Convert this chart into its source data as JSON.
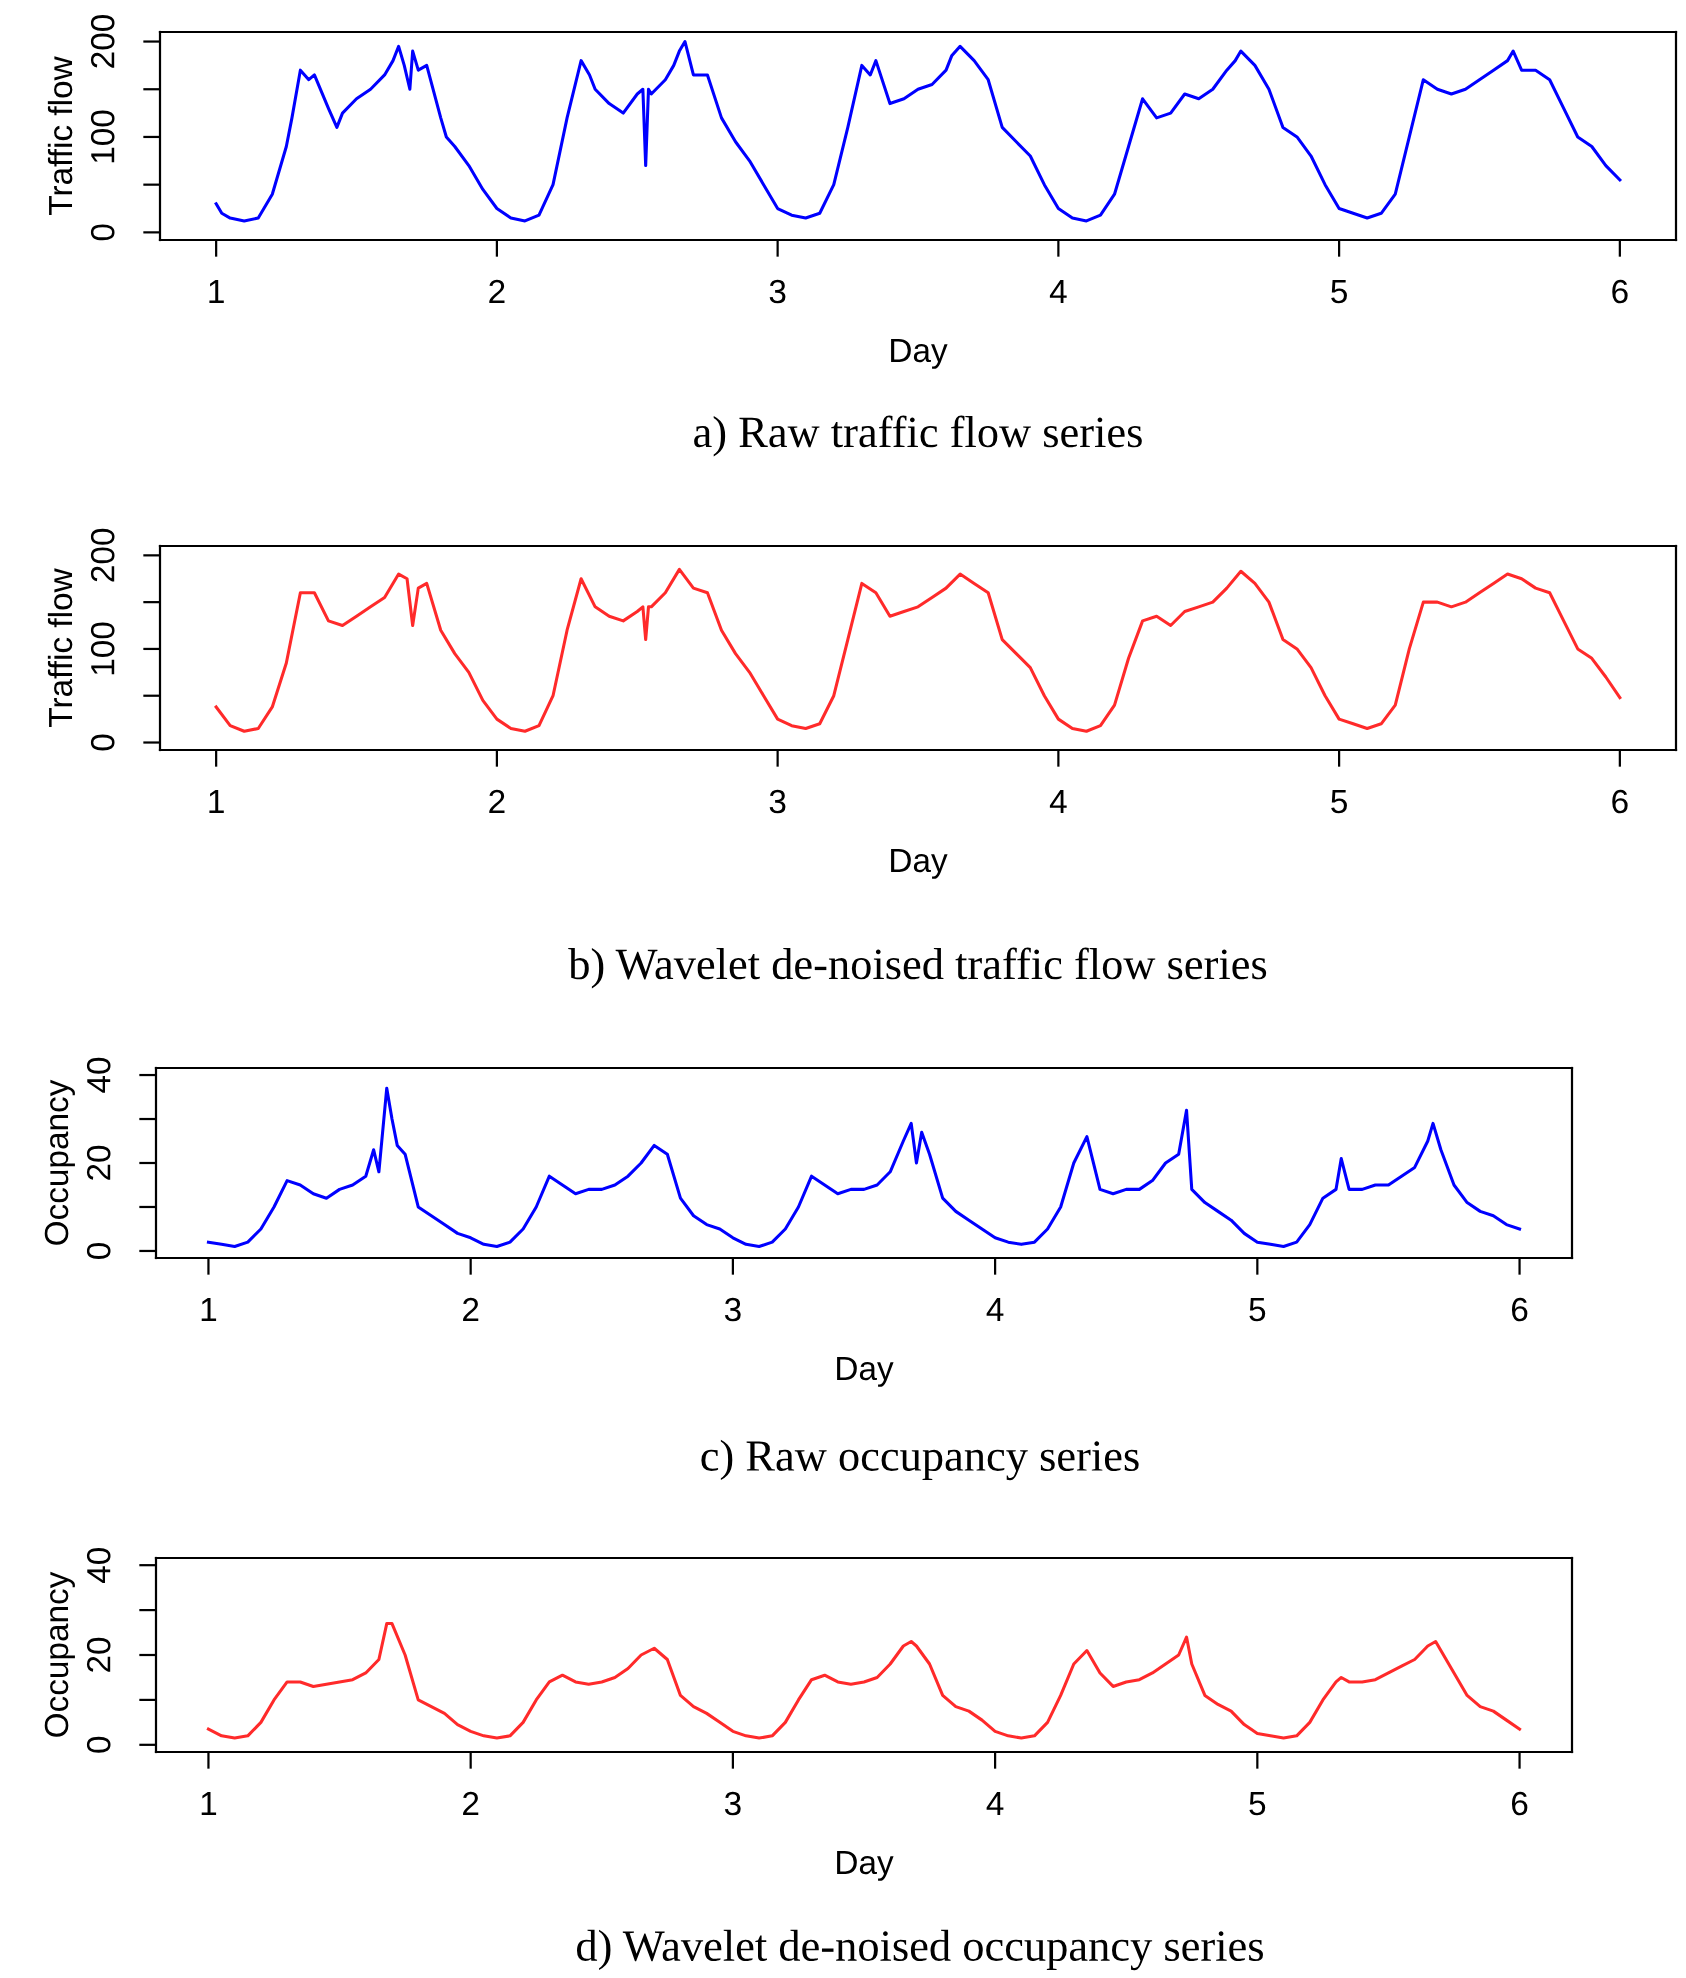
{
  "chart_data": [
    {
      "type": "line",
      "xlabel": "Day",
      "ylabel": "Traffic flow",
      "annotations": [
        "a) Raw traffic flow series"
      ],
      "xlim": [
        0.8,
        6.2
      ],
      "xticks": [
        1,
        2,
        3,
        4,
        5,
        6
      ],
      "ylim": [
        -8,
        210
      ],
      "yticks": [
        0,
        {
          "value": 50,
          "label": null
        },
        100,
        {
          "value": 150,
          "label": null
        },
        200
      ],
      "grid": false,
      "series": [
        {
          "color": "#0000ff",
          "x": [
            1.0,
            1.02,
            1.05,
            1.1,
            1.15,
            1.2,
            1.25,
            1.27,
            1.3,
            1.33,
            1.35,
            1.4,
            1.43,
            1.45,
            1.5,
            1.55,
            1.6,
            1.63,
            1.65,
            1.67,
            1.69,
            1.7,
            1.72,
            1.75,
            1.8,
            1.82,
            1.85,
            1.9,
            1.95,
            2.0,
            2.05,
            2.1,
            2.15,
            2.2,
            2.25,
            2.3,
            2.33,
            2.35,
            2.4,
            2.45,
            2.5,
            2.52,
            2.53,
            2.54,
            2.55,
            2.6,
            2.63,
            2.65,
            2.67,
            2.7,
            2.75,
            2.8,
            2.85,
            2.9,
            2.95,
            3.0,
            3.05,
            3.1,
            3.15,
            3.2,
            3.25,
            3.3,
            3.33,
            3.35,
            3.4,
            3.45,
            3.5,
            3.55,
            3.6,
            3.62,
            3.65,
            3.7,
            3.75,
            3.8,
            3.85,
            3.9,
            3.95,
            4.0,
            4.05,
            4.1,
            4.15,
            4.2,
            4.25,
            4.3,
            4.35,
            4.4,
            4.45,
            4.5,
            4.55,
            4.6,
            4.63,
            4.65,
            4.7,
            4.75,
            4.8,
            4.85,
            4.9,
            4.95,
            5.0,
            5.05,
            5.1,
            5.15,
            5.2,
            5.25,
            5.3,
            5.35,
            5.4,
            5.45,
            5.5,
            5.55,
            5.6,
            5.62,
            5.65,
            5.7,
            5.75,
            5.8,
            5.85,
            5.9,
            5.95,
            6.0
          ],
          "values": [
            30,
            20,
            15,
            12,
            15,
            40,
            90,
            120,
            170,
            160,
            165,
            130,
            110,
            125,
            140,
            150,
            165,
            180,
            195,
            175,
            150,
            190,
            170,
            175,
            120,
            100,
            90,
            70,
            45,
            25,
            15,
            12,
            18,
            50,
            120,
            180,
            165,
            150,
            135,
            125,
            145,
            150,
            70,
            150,
            145,
            160,
            175,
            190,
            200,
            165,
            165,
            120,
            95,
            75,
            50,
            25,
            18,
            15,
            20,
            50,
            110,
            175,
            165,
            180,
            135,
            140,
            150,
            155,
            170,
            185,
            195,
            180,
            160,
            110,
            95,
            80,
            50,
            25,
            15,
            12,
            18,
            40,
            90,
            140,
            120,
            125,
            145,
            140,
            150,
            170,
            180,
            190,
            175,
            150,
            110,
            100,
            80,
            50,
            25,
            20,
            15,
            20,
            40,
            100,
            160,
            150,
            145,
            150,
            160,
            170,
            180,
            190,
            170,
            170,
            160,
            130,
            100,
            90,
            70,
            55
          ]
        }
      ]
    },
    {
      "type": "line",
      "xlabel": "Day",
      "ylabel": "Traffic flow",
      "annotations": [
        "b) Wavelet de-noised traffic flow series"
      ],
      "xlim": [
        0.8,
        6.2
      ],
      "xticks": [
        1,
        2,
        3,
        4,
        5,
        6
      ],
      "ylim": [
        -8,
        210
      ],
      "yticks": [
        0,
        {
          "value": 50,
          "label": null
        },
        100,
        {
          "value": 150,
          "label": null
        },
        200
      ],
      "grid": false,
      "series": [
        {
          "color": "#ff2a2a",
          "x": [
            1.0,
            1.05,
            1.1,
            1.15,
            1.2,
            1.25,
            1.3,
            1.35,
            1.4,
            1.45,
            1.5,
            1.55,
            1.6,
            1.65,
            1.68,
            1.7,
            1.72,
            1.75,
            1.8,
            1.85,
            1.9,
            1.95,
            2.0,
            2.05,
            2.1,
            2.15,
            2.2,
            2.25,
            2.3,
            2.35,
            2.4,
            2.45,
            2.5,
            2.52,
            2.53,
            2.54,
            2.55,
            2.6,
            2.65,
            2.7,
            2.75,
            2.8,
            2.85,
            2.9,
            2.95,
            3.0,
            3.05,
            3.1,
            3.15,
            3.2,
            3.25,
            3.3,
            3.35,
            3.4,
            3.45,
            3.5,
            3.55,
            3.6,
            3.65,
            3.7,
            3.75,
            3.8,
            3.85,
            3.9,
            3.95,
            4.0,
            4.05,
            4.1,
            4.15,
            4.2,
            4.25,
            4.3,
            4.35,
            4.4,
            4.45,
            4.5,
            4.55,
            4.6,
            4.65,
            4.7,
            4.75,
            4.8,
            4.85,
            4.9,
            4.95,
            5.0,
            5.05,
            5.1,
            5.15,
            5.2,
            5.25,
            5.3,
            5.35,
            5.4,
            5.45,
            5.5,
            5.55,
            5.6,
            5.65,
            5.7,
            5.75,
            5.8,
            5.85,
            5.9,
            5.95,
            6.0
          ],
          "values": [
            38,
            18,
            12,
            15,
            38,
            85,
            160,
            160,
            130,
            125,
            135,
            145,
            155,
            180,
            175,
            125,
            165,
            170,
            120,
            95,
            75,
            45,
            25,
            15,
            12,
            18,
            50,
            120,
            175,
            145,
            135,
            130,
            140,
            145,
            110,
            145,
            145,
            160,
            185,
            165,
            160,
            120,
            95,
            75,
            50,
            25,
            18,
            15,
            20,
            50,
            110,
            170,
            160,
            135,
            140,
            145,
            155,
            165,
            180,
            170,
            160,
            110,
            95,
            80,
            50,
            25,
            15,
            12,
            18,
            40,
            90,
            130,
            135,
            125,
            140,
            145,
            150,
            165,
            183,
            170,
            150,
            110,
            100,
            80,
            50,
            25,
            20,
            15,
            20,
            40,
            100,
            150,
            150,
            145,
            150,
            160,
            170,
            180,
            175,
            165,
            160,
            130,
            100,
            90,
            70,
            48
          ]
        }
      ]
    },
    {
      "type": "line",
      "xlabel": "Day",
      "ylabel": "Occupancy",
      "annotations": [
        "c) Raw occupancy series"
      ],
      "xlim": [
        0.8,
        6.2
      ],
      "xticks": [
        1,
        2,
        3,
        4,
        5,
        6
      ],
      "ylim": [
        -1.6,
        41.6
      ],
      "yticks": [
        0,
        {
          "value": 10,
          "label": null
        },
        20,
        {
          "value": 30,
          "label": null
        },
        40
      ],
      "grid": false,
      "series": [
        {
          "color": "#0000ff",
          "x": [
            1.0,
            1.05,
            1.1,
            1.15,
            1.2,
            1.25,
            1.3,
            1.35,
            1.4,
            1.45,
            1.5,
            1.55,
            1.6,
            1.63,
            1.65,
            1.68,
            1.7,
            1.72,
            1.75,
            1.8,
            1.85,
            1.9,
            1.95,
            2.0,
            2.05,
            2.1,
            2.15,
            2.2,
            2.25,
            2.3,
            2.35,
            2.4,
            2.45,
            2.5,
            2.55,
            2.6,
            2.65,
            2.7,
            2.75,
            2.8,
            2.85,
            2.9,
            2.95,
            3.0,
            3.05,
            3.1,
            3.15,
            3.2,
            3.25,
            3.3,
            3.35,
            3.4,
            3.45,
            3.5,
            3.55,
            3.6,
            3.65,
            3.68,
            3.7,
            3.72,
            3.75,
            3.8,
            3.85,
            3.9,
            3.95,
            4.0,
            4.05,
            4.1,
            4.15,
            4.2,
            4.25,
            4.3,
            4.35,
            4.4,
            4.45,
            4.5,
            4.55,
            4.6,
            4.65,
            4.7,
            4.73,
            4.75,
            4.8,
            4.85,
            4.9,
            4.95,
            5.0,
            5.05,
            5.1,
            5.15,
            5.2,
            5.25,
            5.3,
            5.32,
            5.35,
            5.4,
            5.45,
            5.5,
            5.55,
            5.6,
            5.65,
            5.67,
            5.7,
            5.75,
            5.8,
            5.85,
            5.9,
            5.95,
            6.0
          ],
          "values": [
            2,
            1.5,
            1,
            2,
            5,
            10,
            16,
            15,
            13,
            12,
            14,
            15,
            17,
            23,
            18,
            37,
            30,
            24,
            22,
            10,
            8,
            6,
            4,
            3,
            1.5,
            1,
            2,
            5,
            10,
            17,
            15,
            13,
            14,
            14,
            15,
            17,
            20,
            24,
            22,
            12,
            8,
            6,
            5,
            3,
            1.5,
            1,
            2,
            5,
            10,
            17,
            15,
            13,
            14,
            14,
            15,
            18,
            25,
            29,
            20,
            27,
            22,
            12,
            9,
            7,
            5,
            3,
            2,
            1.5,
            2,
            5,
            10,
            20,
            26,
            14,
            13,
            14,
            14,
            16,
            20,
            22,
            32,
            14,
            11,
            9,
            7,
            4,
            2,
            1.5,
            1,
            2,
            6,
            12,
            14,
            21,
            14,
            14,
            15,
            15,
            17,
            19,
            25,
            29,
            23,
            15,
            11,
            9,
            8,
            6,
            5
          ]
        }
      ]
    },
    {
      "type": "line",
      "xlabel": "Day",
      "ylabel": "Occupancy",
      "annotations": [
        "d) Wavelet de-noised occupancy series"
      ],
      "xlim": [
        0.8,
        6.2
      ],
      "xticks": [
        1,
        2,
        3,
        4,
        5,
        6
      ],
      "ylim": [
        -1.6,
        41.6
      ],
      "yticks": [
        0,
        {
          "value": 10,
          "label": null
        },
        20,
        {
          "value": 30,
          "label": null
        },
        40
      ],
      "grid": false,
      "series": [
        {
          "color": "#ff2a2a",
          "x": [
            1.0,
            1.05,
            1.1,
            1.15,
            1.2,
            1.25,
            1.3,
            1.35,
            1.4,
            1.45,
            1.5,
            1.55,
            1.6,
            1.65,
            1.68,
            1.7,
            1.75,
            1.8,
            1.85,
            1.9,
            1.95,
            2.0,
            2.05,
            2.1,
            2.15,
            2.2,
            2.25,
            2.3,
            2.35,
            2.4,
            2.45,
            2.5,
            2.55,
            2.6,
            2.65,
            2.7,
            2.75,
            2.8,
            2.85,
            2.9,
            2.95,
            3.0,
            3.05,
            3.1,
            3.15,
            3.2,
            3.25,
            3.3,
            3.35,
            3.4,
            3.45,
            3.5,
            3.55,
            3.6,
            3.65,
            3.68,
            3.7,
            3.75,
            3.8,
            3.85,
            3.9,
            3.95,
            4.0,
            4.05,
            4.1,
            4.15,
            4.2,
            4.25,
            4.3,
            4.35,
            4.4,
            4.45,
            4.5,
            4.55,
            4.6,
            4.65,
            4.7,
            4.73,
            4.75,
            4.8,
            4.85,
            4.9,
            4.95,
            5.0,
            5.05,
            5.1,
            5.15,
            5.2,
            5.25,
            5.3,
            5.32,
            5.35,
            5.4,
            5.45,
            5.5,
            5.55,
            5.6,
            5.65,
            5.68,
            5.7,
            5.75,
            5.8,
            5.85,
            5.9,
            5.95,
            6.0
          ],
          "values": [
            3.5,
            2,
            1.5,
            2,
            5,
            10,
            14,
            14,
            13,
            13.5,
            14,
            14.5,
            16,
            19,
            27,
            27,
            20,
            10,
            8.5,
            7,
            4.5,
            3,
            2,
            1.5,
            2,
            5,
            10,
            14,
            15.5,
            14,
            13.5,
            14,
            15,
            17,
            20,
            21.5,
            19,
            11,
            8.5,
            7,
            5,
            3,
            2,
            1.5,
            2,
            5,
            10,
            14.5,
            15.5,
            14,
            13.5,
            14,
            15,
            18,
            22,
            23,
            22,
            18,
            11,
            8.5,
            7.5,
            5.5,
            3,
            2,
            1.5,
            2,
            5,
            11,
            18,
            21,
            16,
            13,
            14,
            14.5,
            16,
            18,
            20,
            24,
            18,
            11,
            9,
            7.5,
            4.5,
            2.5,
            2,
            1.5,
            2,
            5,
            10,
            14,
            15,
            14,
            14,
            14.5,
            16,
            17.5,
            19,
            22,
            23,
            21,
            16,
            11,
            8.5,
            7.5,
            5.5,
            3.5
          ]
        }
      ]
    }
  ]
}
